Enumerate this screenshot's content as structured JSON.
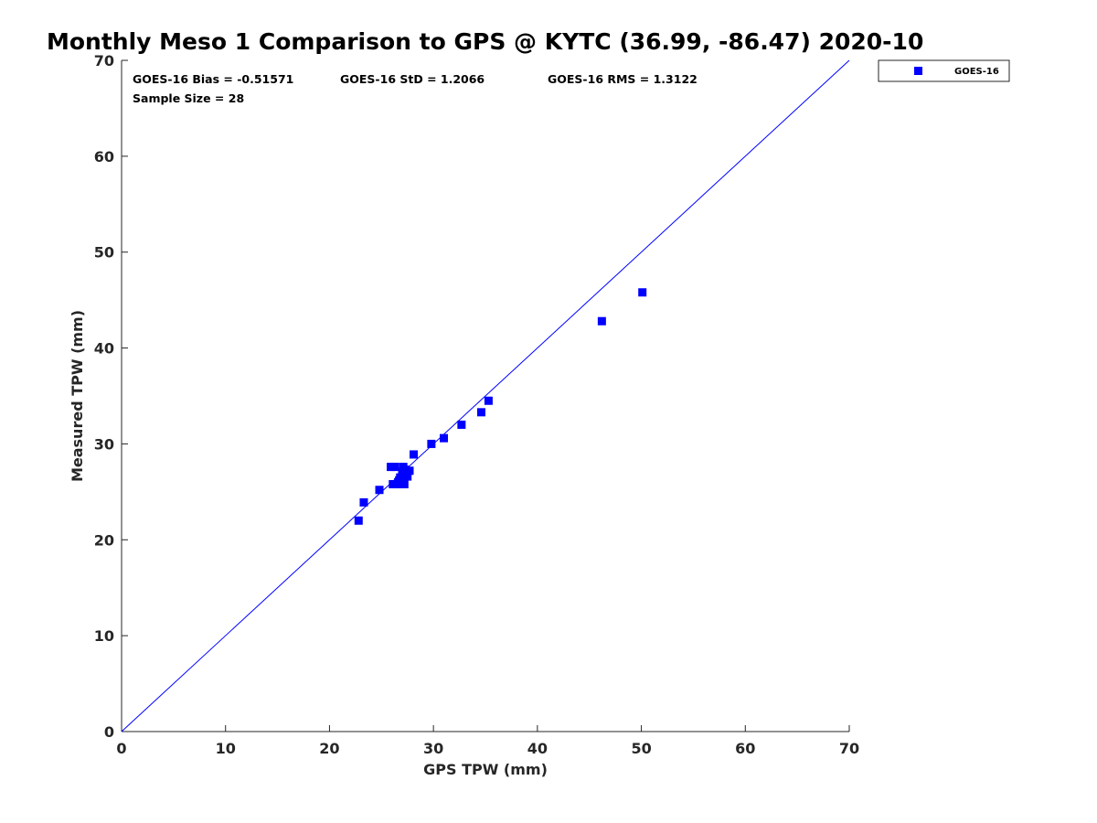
{
  "chart_data": {
    "type": "scatter",
    "title": "Monthly Meso 1 Comparison to GPS @ KYTC (36.99, -86.47) 2020-10",
    "xlabel": "GPS TPW (mm)",
    "ylabel": "Measured TPW (mm)",
    "xlim": [
      0,
      70
    ],
    "ylim": [
      0,
      70
    ],
    "xticks": [
      "0",
      "10",
      "20",
      "30",
      "40",
      "50",
      "60",
      "70"
    ],
    "yticks": [
      "0",
      "10",
      "20",
      "30",
      "40",
      "50",
      "60",
      "70"
    ],
    "grid": false,
    "legend_position": "outside-top-right",
    "stats": {
      "bias": "GOES-16 Bias = -0.51571",
      "std": "GOES-16 StD = 1.2066",
      "rms": "GOES-16 RMS = 1.3122",
      "sample": "Sample Size = 28"
    },
    "reference_line": {
      "x": [
        0,
        70
      ],
      "y": [
        0,
        70
      ],
      "color": "#0000ff"
    },
    "series": [
      {
        "name": "GOES-16",
        "color": "#0000ff",
        "marker": "square",
        "points": [
          [
            22.8,
            22.0
          ],
          [
            23.3,
            23.9
          ],
          [
            24.8,
            25.2
          ],
          [
            25.9,
            27.6
          ],
          [
            26.3,
            27.6
          ],
          [
            26.1,
            25.8
          ],
          [
            26.5,
            25.8
          ],
          [
            26.7,
            26.2
          ],
          [
            26.9,
            25.8
          ],
          [
            27.2,
            25.8
          ],
          [
            26.8,
            26.5
          ],
          [
            27.0,
            26.9
          ],
          [
            27.1,
            27.6
          ],
          [
            27.3,
            27.3
          ],
          [
            27.5,
            26.6
          ],
          [
            27.7,
            27.2
          ],
          [
            27.2,
            27.0
          ],
          [
            26.6,
            26.0
          ],
          [
            27.4,
            26.8
          ],
          [
            28.1,
            28.9
          ],
          [
            29.8,
            30.0
          ],
          [
            31.0,
            30.6
          ],
          [
            32.7,
            32.0
          ],
          [
            34.6,
            33.3
          ],
          [
            35.3,
            34.5
          ],
          [
            46.2,
            42.8
          ],
          [
            50.1,
            45.8
          ],
          [
            27.0,
            27.1
          ]
        ]
      }
    ]
  }
}
